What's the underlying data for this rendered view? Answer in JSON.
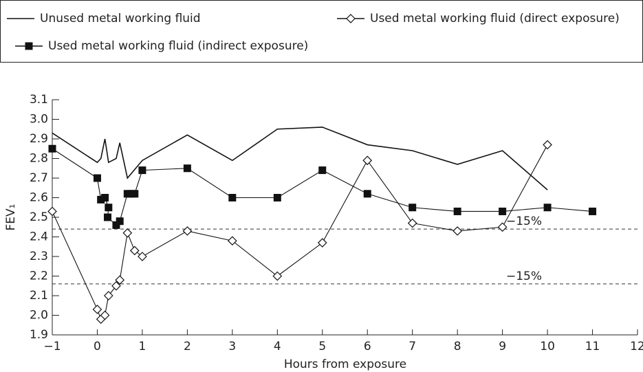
{
  "chart_data": {
    "type": "line",
    "x_label": "Hours from exposure",
    "y_label": "FEV₁",
    "xlim": [
      -1,
      12
    ],
    "xticks": [
      {
        "value": -1,
        "label": "−1"
      },
      0,
      1,
      2,
      3,
      4,
      5,
      6,
      7,
      8,
      9,
      10,
      11,
      12
    ],
    "ylim": [
      1.9,
      3.1
    ],
    "yticks": [
      1.9,
      {
        "value": 2,
        "label": "2.0"
      },
      2.1,
      2.2,
      2.3,
      2.4,
      2.5,
      2.6,
      2.7,
      2.8,
      2.9,
      {
        "value": 3,
        "label": "3.0"
      },
      3.1
    ],
    "reference_lines": [
      {
        "value": 2.44,
        "label": "−15%"
      },
      {
        "value": 2.16,
        "label": "−15%"
      }
    ],
    "series": [
      {
        "name": "Unused metal working fluid",
        "color": "#111111",
        "marker": "none",
        "x": [
          -1,
          0,
          0.08,
          0.17,
          0.25,
          0.42,
          0.5,
          0.67,
          1,
          2,
          3,
          4,
          5,
          6,
          7,
          8,
          9,
          10
        ],
        "values": [
          2.93,
          2.78,
          2.8,
          2.9,
          2.78,
          2.8,
          2.88,
          2.7,
          2.79,
          2.92,
          2.79,
          2.95,
          2.96,
          2.87,
          2.84,
          2.77,
          2.84,
          2.64
        ]
      },
      {
        "name": "Used metal working fluid (direct exposure)",
        "color": "#111111",
        "marker": "diamond",
        "x": [
          -1,
          0,
          0.08,
          0.17,
          0.25,
          0.42,
          0.5,
          0.67,
          0.83,
          1,
          2,
          3,
          4,
          5,
          6,
          7,
          8,
          9,
          10
        ],
        "values": [
          2.53,
          2.03,
          1.98,
          2.0,
          2.1,
          2.15,
          2.18,
          2.42,
          2.33,
          2.3,
          2.43,
          2.38,
          2.2,
          2.37,
          2.79,
          2.47,
          2.43,
          2.45,
          2.87
        ]
      },
      {
        "name": "Used metal working fluid (indirect exposure)",
        "color": "#111111",
        "marker": "square",
        "x": [
          -1,
          0,
          0.08,
          0.17,
          0.25,
          0.23,
          0.42,
          0.5,
          0.67,
          0.75,
          0.83,
          1,
          2,
          3,
          4,
          5,
          6,
          7,
          8,
          9,
          10,
          11
        ],
        "values": [
          2.85,
          2.7,
          2.59,
          2.6,
          2.55,
          2.5,
          2.46,
          2.48,
          2.62,
          2.62,
          2.62,
          2.74,
          2.75,
          2.6,
          2.6,
          2.74,
          2.62,
          2.55,
          2.53,
          2.53,
          2.55,
          2.53
        ]
      }
    ]
  }
}
